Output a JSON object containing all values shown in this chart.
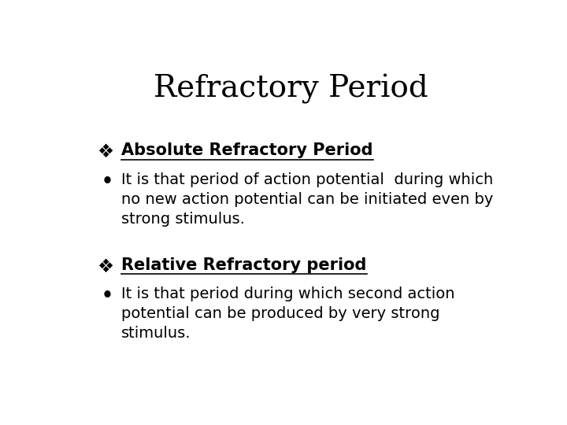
{
  "title": "Refractory Period",
  "title_fontsize": 28,
  "title_font": "DejaVu Serif",
  "background_color": "#ffffff",
  "text_color": "#000000",
  "section1_header": "Absolute Refractory Period",
  "section1_bullet": "It is that period of action potential  during which\nno new action potential can be initiated even by\nstrong stimulus.",
  "section2_header": "Relative Refractory period",
  "section2_bullet": "It is that period during which second action\npotential can be produced by very strong\nstimulus.",
  "header_fontsize": 15,
  "bullet_fontsize": 14,
  "diamond_char": "❖"
}
